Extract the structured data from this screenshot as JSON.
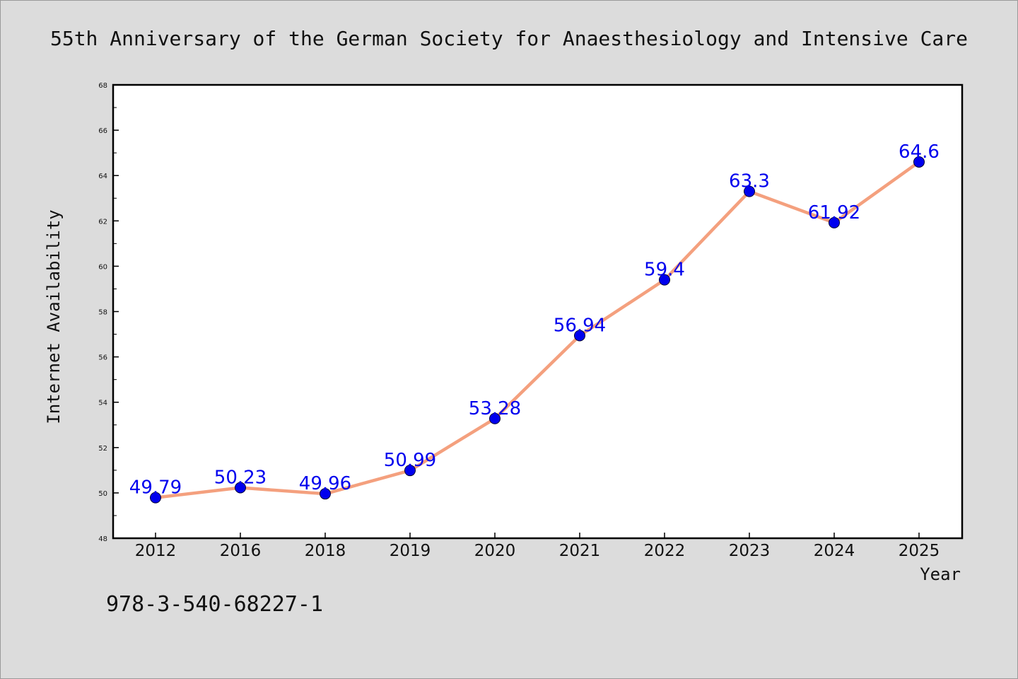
{
  "chart_data": {
    "type": "line",
    "title": "55th Anniversary of the German Society for Anaesthesiology and Intensive Care",
    "xlabel": "Year",
    "ylabel": "Internet Availability",
    "categories": [
      "2012",
      "2016",
      "2018",
      "2019",
      "2020",
      "2021",
      "2022",
      "2023",
      "2024",
      "2025"
    ],
    "series": [
      {
        "values": [
          49.79,
          50.23,
          49.96,
          50.99,
          53.28,
          56.94,
          59.4,
          63.3,
          61.92,
          64.6
        ]
      }
    ],
    "data_labels": [
      "49.79",
      "50.23",
      "49.96",
      "50.99",
      "53.28",
      "56.94",
      "59.4",
      "63.3",
      "61.92",
      "64.6"
    ],
    "ylim": [
      48,
      68
    ],
    "yticks": [
      48,
      50,
      52,
      54,
      56,
      58,
      60,
      62,
      64,
      66,
      68
    ],
    "grid": false,
    "legend": "none",
    "colors": {
      "line": "#f4a07e",
      "marker": "#0000ee",
      "label": "#0000ee",
      "background": "#dcdcdc",
      "plot_background": "#ffffff"
    }
  },
  "footnote": "978-3-540-68227-1"
}
